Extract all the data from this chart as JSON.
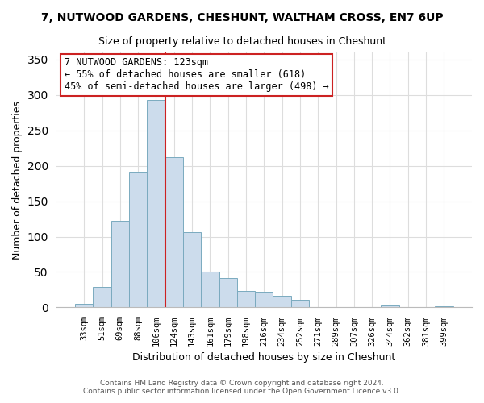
{
  "title": "7, NUTWOOD GARDENS, CHESHUNT, WALTHAM CROSS, EN7 6UP",
  "subtitle": "Size of property relative to detached houses in Cheshunt",
  "xlabel": "Distribution of detached houses by size in Cheshunt",
  "ylabel": "Number of detached properties",
  "bar_labels": [
    "33sqm",
    "51sqm",
    "69sqm",
    "88sqm",
    "106sqm",
    "124sqm",
    "143sqm",
    "161sqm",
    "179sqm",
    "198sqm",
    "216sqm",
    "234sqm",
    "252sqm",
    "271sqm",
    "289sqm",
    "307sqm",
    "326sqm",
    "344sqm",
    "362sqm",
    "381sqm",
    "399sqm"
  ],
  "bar_values": [
    5,
    29,
    122,
    190,
    293,
    212,
    106,
    50,
    42,
    23,
    22,
    16,
    11,
    0,
    0,
    0,
    0,
    3,
    0,
    0,
    2
  ],
  "bar_color": "#ccdcec",
  "bar_edge_color": "#7aaabf",
  "property_line_color": "#cc2222",
  "annotation_title": "7 NUTWOOD GARDENS: 123sqm",
  "annotation_line1": "← 55% of detached houses are smaller (618)",
  "annotation_line2": "45% of semi-detached houses are larger (498) →",
  "annotation_box_color": "#ffffff",
  "annotation_box_edge": "#cc2222",
  "ylim": [
    0,
    360
  ],
  "yticks": [
    0,
    50,
    100,
    150,
    200,
    250,
    300,
    350
  ],
  "plot_bg_color": "#ffffff",
  "fig_bg_color": "#ffffff",
  "grid_color": "#dddddd",
  "footer1": "Contains HM Land Registry data © Crown copyright and database right 2024.",
  "footer2": "Contains public sector information licensed under the Open Government Licence v3.0."
}
